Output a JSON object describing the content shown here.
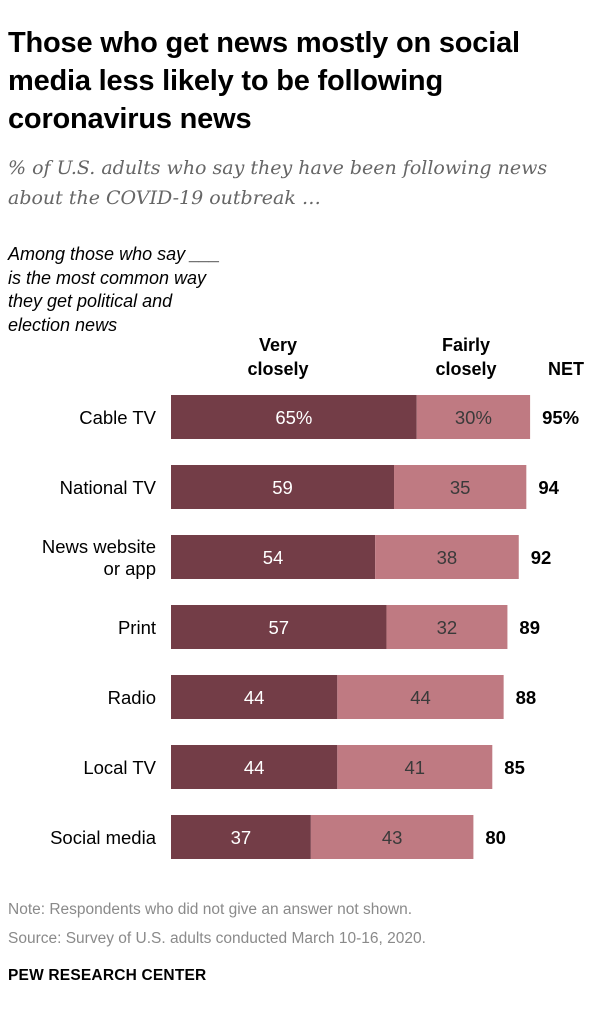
{
  "chart_data": {
    "type": "bar",
    "stacked": true,
    "orientation": "horizontal",
    "title": "Those who get news mostly on social media less likely to be following coronavirus news",
    "subtitle": "% of U.S. adults who say they have been following news about the COVID-19 outbreak …",
    "row_header": "Among those who say ___ is the most common way they get political and election news",
    "categories": [
      [
        "Cable TV"
      ],
      [
        "National TV"
      ],
      [
        "News website",
        "or app"
      ],
      [
        "Print"
      ],
      [
        "Radio"
      ],
      [
        "Local TV"
      ],
      [
        "Social media"
      ]
    ],
    "series": [
      {
        "name": "Very closely",
        "values": [
          65,
          59,
          54,
          57,
          44,
          44,
          37
        ],
        "labels": [
          "65%",
          "59",
          "54",
          "57",
          "44",
          "44",
          "37"
        ],
        "color": "#733d47"
      },
      {
        "name": "Fairly closely",
        "values": [
          30,
          35,
          38,
          32,
          44,
          41,
          43
        ],
        "labels": [
          "30%",
          "35",
          "38",
          "32",
          "44",
          "41",
          "43"
        ],
        "color": "#bf7a82"
      }
    ],
    "net": {
      "name": "NET",
      "values": [
        95,
        94,
        92,
        89,
        88,
        85,
        80
      ],
      "labels": [
        "95%",
        "94",
        "92",
        "89",
        "88",
        "85",
        "80"
      ]
    },
    "xlim": [
      0,
      100
    ]
  },
  "headers": {
    "very_line1": "Very",
    "very_line2": "closely",
    "fairly_line1": "Fairly",
    "fairly_line2": "closely",
    "net": "NET"
  },
  "footer": {
    "note": "Note: Respondents who did not give an answer not shown.",
    "source": "Source: Survey of U.S. adults conducted March 10-16, 2020.",
    "brand": "PEW RESEARCH CENTER"
  }
}
